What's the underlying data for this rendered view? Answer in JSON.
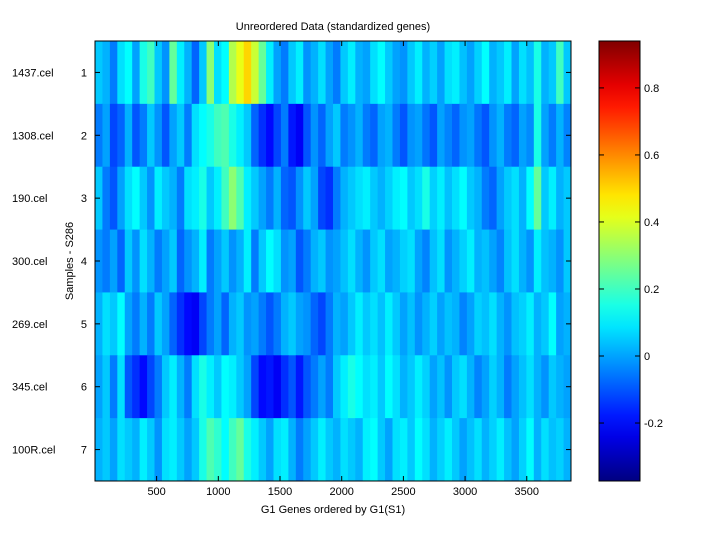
{
  "chart_data": {
    "type": "heatmap",
    "title": "Unreordered Data (standardized genes)",
    "xlabel": "G1 Genes ordered by G1(S1)",
    "ylabel": "Samples - S286",
    "xlim": [
      1,
      3858
    ],
    "xticks": [
      500,
      1000,
      1500,
      2000,
      2500,
      3000,
      3500
    ],
    "yticks": [
      1,
      2,
      3,
      4,
      5,
      6,
      7
    ],
    "row_labels": [
      "1437.cel",
      "1308.cel",
      "190.cel",
      "300.cel",
      "269.cel",
      "345.cel",
      "100R.cel"
    ],
    "colormap": "jet",
    "clim": [
      -0.373,
      0.94
    ],
    "colorbar_ticks": [
      -0.2,
      0,
      0.2,
      0.4,
      0.6,
      0.8
    ],
    "colorbar_tick_labels": [
      "-0.2",
      "0",
      "0.2",
      "0.4",
      "0.6",
      "0.8"
    ],
    "values": [
      [
        0.05,
        0.02,
        -0.05,
        0.08,
        0.12,
        0.0,
        0.15,
        0.2,
        0.05,
        -0.02,
        0.25,
        0.1,
        0.02,
        -0.08,
        0.05,
        0.3,
        0.08,
        0.12,
        0.35,
        0.42,
        0.5,
        0.38,
        0.25,
        0.1,
        0.0,
        -0.05,
        0.05,
        0.1,
        -0.02,
        0.02,
        0.08,
        0.0,
        -0.05,
        0.05,
        0.1,
        0.02,
        0.0,
        0.08,
        0.12,
        0.05,
        0.0,
        -0.02,
        0.05,
        0.1,
        0.02,
        0.06,
        0.0,
        0.08,
        0.1,
        0.04,
        0.0,
        0.06,
        0.12,
        0.02,
        0.05,
        0.1,
        0.0,
        0.08,
        0.04,
        0.15,
        0.02,
        0.05,
        0.2,
        0.05
      ],
      [
        -0.05,
        0.0,
        -0.12,
        -0.08,
        0.02,
        -0.1,
        -0.05,
        0.05,
        -0.02,
        -0.1,
        0.0,
        0.05,
        -0.05,
        0.08,
        0.12,
        0.15,
        0.2,
        0.22,
        0.15,
        0.1,
        0.05,
        -0.08,
        -0.15,
        -0.2,
        -0.12,
        -0.05,
        -0.18,
        -0.22,
        -0.1,
        -0.02,
        -0.08,
        0.0,
        0.05,
        -0.05,
        -0.02,
        0.02,
        -0.05,
        -0.08,
        0.0,
        0.02,
        -0.05,
        -0.1,
        -0.02,
        0.0,
        -0.06,
        -0.1,
        0.0,
        -0.04,
        -0.08,
        -0.02,
        0.0,
        -0.06,
        -0.1,
        -0.02,
        0.02,
        -0.05,
        -0.08,
        0.0,
        -0.03,
        0.15,
        0.0,
        -0.05,
        0.02,
        -0.04
      ],
      [
        0.05,
        -0.05,
        -0.1,
        0.0,
        0.08,
        0.12,
        0.05,
        -0.02,
        0.1,
        0.05,
        0.02,
        -0.05,
        0.08,
        0.1,
        0.15,
        0.05,
        0.1,
        0.2,
        0.3,
        0.22,
        0.1,
        0.05,
        0.0,
        -0.05,
        0.02,
        -0.08,
        -0.1,
        -0.02,
        0.05,
        0.0,
        -0.12,
        -0.15,
        -0.05,
        0.02,
        0.05,
        0.08,
        0.1,
        0.05,
        0.02,
        0.06,
        0.1,
        0.12,
        0.05,
        0.08,
        0.15,
        0.06,
        0.1,
        0.04,
        0.08,
        0.12,
        0.05,
        0.02,
        -0.05,
        -0.08,
        0.0,
        0.05,
        0.08,
        0.02,
        0.12,
        0.25,
        0.05,
        0.1,
        0.02,
        0.05
      ],
      [
        -0.02,
        -0.05,
        0.0,
        -0.08,
        0.05,
        -0.02,
        0.08,
        0.02,
        -0.05,
        0.0,
        0.05,
        -0.08,
        -0.02,
        0.02,
        0.1,
        -0.05,
        0.0,
        0.05,
        -0.02,
        0.02,
        0.1,
        -0.05,
        0.05,
        0.12,
        0.08,
        -0.02,
        0.0,
        -0.1,
        -0.05,
        0.02,
        0.05,
        -0.02,
        0.0,
        0.04,
        0.08,
        0.02,
        -0.02,
        0.05,
        0.08,
        0.0,
        0.02,
        0.06,
        0.08,
        0.0,
        -0.04,
        0.04,
        0.08,
        -0.02,
        0.02,
        0.06,
        0.1,
        0.02,
        0.04,
        0.0,
        -0.04,
        0.04,
        0.08,
        0.02,
        -0.02,
        0.1,
        0.04,
        0.02,
        -0.02,
        0.05
      ],
      [
        0.02,
        0.08,
        0.05,
        0.12,
        0.0,
        -0.05,
        0.02,
        -0.05,
        0.05,
        0.0,
        -0.08,
        -0.15,
        -0.2,
        -0.22,
        -0.12,
        -0.05,
        0.0,
        -0.08,
        0.02,
        0.05,
        -0.02,
        0.0,
        -0.05,
        -0.1,
        -0.05,
        0.02,
        0.05,
        0.0,
        -0.02,
        -0.08,
        -0.12,
        -0.05,
        0.02,
        0.0,
        0.05,
        0.1,
        0.05,
        0.08,
        0.04,
        0.1,
        0.05,
        0.0,
        0.04,
        -0.02,
        0.02,
        0.06,
        0.0,
        0.04,
        0.02,
        -0.04,
        0.0,
        0.06,
        0.04,
        0.08,
        0.02,
        -0.02,
        0.04,
        0.06,
        0.1,
        0.02,
        0.05,
        0.12,
        0.0,
        0.02
      ],
      [
        0.0,
        0.05,
        -0.05,
        0.08,
        -0.1,
        -0.15,
        -0.2,
        -0.12,
        -0.05,
        0.05,
        0.1,
        0.02,
        -0.05,
        0.08,
        0.15,
        0.1,
        0.05,
        0.12,
        0.1,
        0.05,
        0.0,
        -0.12,
        -0.2,
        -0.18,
        -0.22,
        -0.15,
        -0.1,
        -0.18,
        -0.1,
        -0.05,
        0.0,
        -0.05,
        0.05,
        0.1,
        0.15,
        0.12,
        0.08,
        0.1,
        0.05,
        0.12,
        0.08,
        0.02,
        0.05,
        0.1,
        0.06,
        0.0,
        0.04,
        -0.02,
        0.05,
        0.08,
        0.02,
        -0.04,
        0.0,
        0.06,
        0.02,
        -0.05,
        0.0,
        0.04,
        0.08,
        0.02,
        -0.02,
        0.05,
        0.02,
        0.0
      ],
      [
        0.02,
        0.05,
        0.0,
        0.08,
        0.05,
        0.02,
        0.1,
        0.05,
        -0.02,
        0.08,
        0.1,
        0.05,
        0.0,
        0.05,
        0.15,
        0.22,
        0.18,
        0.12,
        0.2,
        0.25,
        0.15,
        0.1,
        0.05,
        0.0,
        0.08,
        0.1,
        0.02,
        -0.05,
        0.0,
        0.05,
        0.1,
        0.05,
        0.02,
        0.08,
        0.05,
        0.02,
        0.1,
        0.12,
        0.05,
        0.0,
        0.08,
        0.1,
        0.05,
        0.12,
        0.08,
        0.02,
        0.06,
        0.1,
        0.05,
        0.0,
        0.04,
        0.08,
        0.02,
        0.06,
        0.1,
        0.04,
        0.0,
        0.06,
        0.12,
        0.02,
        0.08,
        0.04,
        0.06,
        0.02
      ]
    ]
  }
}
